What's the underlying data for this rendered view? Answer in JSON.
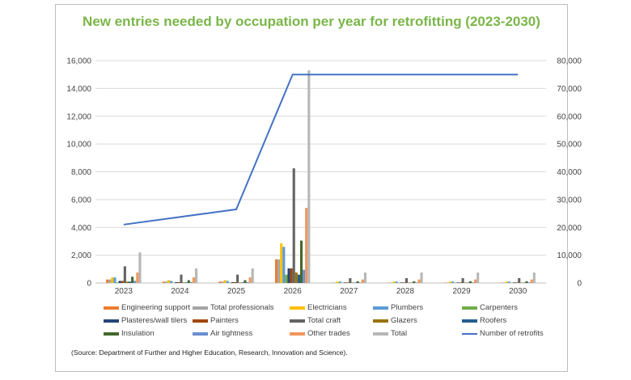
{
  "chart_data": {
    "type": "bar",
    "title": "New entries needed by occupation per year for retrofitting (2023-2030)",
    "categories": [
      "2023",
      "2024",
      "2025",
      "2026",
      "2027",
      "2028",
      "2029",
      "2030"
    ],
    "ylim": [
      0,
      16000
    ],
    "y2lim": [
      0,
      80000
    ],
    "yticks": [
      "0",
      "2,000",
      "4,000",
      "6,000",
      "8,000",
      "10,000",
      "12,000",
      "14,000",
      "16,000"
    ],
    "y2ticks": [
      "0",
      "10,000",
      "20,000",
      "30,000",
      "40,000",
      "50,000",
      "60,000",
      "70,000",
      "80,000"
    ],
    "grid": true,
    "legend_position": "bottom",
    "series": [
      {
        "name": "Engineering support",
        "color": "#ed7d31",
        "values": [
          250,
          100,
          100,
          1700,
          30,
          30,
          30,
          30
        ]
      },
      {
        "name": "Total professionals",
        "color": "#a5a5a5",
        "values": [
          250,
          100,
          100,
          1700,
          30,
          30,
          30,
          30
        ]
      },
      {
        "name": "Electricians",
        "color": "#ffc000",
        "values": [
          400,
          200,
          200,
          2850,
          100,
          100,
          100,
          100
        ]
      },
      {
        "name": "Plumbers",
        "color": "#5b9bd5",
        "values": [
          400,
          150,
          150,
          2600,
          100,
          100,
          100,
          100
        ]
      },
      {
        "name": "Carpenters",
        "color": "#70ad47",
        "values": [
          50,
          30,
          30,
          600,
          20,
          20,
          20,
          20
        ]
      },
      {
        "name": "Plasteres/wall tilers",
        "color": "#264478",
        "values": [
          150,
          60,
          60,
          1050,
          40,
          40,
          40,
          40
        ]
      },
      {
        "name": "Painters",
        "color": "#9e480e",
        "values": [
          150,
          60,
          60,
          1050,
          40,
          40,
          40,
          40
        ]
      },
      {
        "name": "Total craft",
        "color": "#636363",
        "values": [
          1200,
          600,
          600,
          8250,
          350,
          350,
          350,
          350
        ]
      },
      {
        "name": "Glazers",
        "color": "#997300",
        "values": [
          100,
          40,
          40,
          750,
          30,
          30,
          30,
          30
        ]
      },
      {
        "name": "Roofers",
        "color": "#255e91",
        "values": [
          100,
          40,
          40,
          600,
          30,
          30,
          30,
          30
        ]
      },
      {
        "name": "Insulation",
        "color": "#43682b",
        "values": [
          450,
          200,
          200,
          3050,
          120,
          120,
          120,
          120
        ]
      },
      {
        "name": "Air tightness",
        "color": "#698ed0",
        "values": [
          150,
          60,
          60,
          950,
          40,
          40,
          40,
          40
        ]
      },
      {
        "name": "Other trades",
        "color": "#f1975a",
        "values": [
          750,
          400,
          400,
          5400,
          250,
          250,
          250,
          250
        ]
      },
      {
        "name": "Total",
        "color": "#b7b7b7",
        "values": [
          2200,
          1050,
          1050,
          15300,
          750,
          750,
          750,
          750
        ]
      }
    ],
    "line": {
      "name": "Number of retrofits",
      "color": "#4472c4",
      "axis": "secondary",
      "values": [
        21000,
        null,
        26500,
        75000,
        75000,
        75000,
        75000,
        75000
      ]
    }
  },
  "source": "(Source: Department of Further and Higher Education, Research, Innovation and Science)."
}
